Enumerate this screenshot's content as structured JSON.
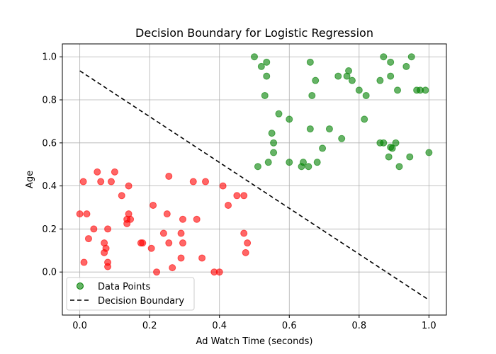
{
  "chart_data": {
    "type": "scatter",
    "title": "Decision Boundary for Logistic Regression",
    "xlabel": "Ad Watch Time (seconds)",
    "ylabel": "Age",
    "xlim": [
      -0.05,
      1.05
    ],
    "ylim": [
      -0.2,
      1.06
    ],
    "xticks": [
      "0.0",
      "0.2",
      "0.4",
      "0.6",
      "0.8",
      "1.0"
    ],
    "yticks": [
      "0.0",
      "0.2",
      "0.4",
      "0.6",
      "0.8",
      "1.0"
    ],
    "grid": true,
    "legend_position": "lower-left",
    "series": [
      {
        "name": "Data Points",
        "kind": "scatter",
        "points": [
          [
            0.0,
            0.27
          ],
          [
            0.01,
            0.42
          ],
          [
            0.012,
            0.045
          ],
          [
            0.02,
            0.27
          ],
          [
            0.025,
            0.155
          ],
          [
            0.04,
            0.2
          ],
          [
            0.05,
            0.465
          ],
          [
            0.06,
            0.42
          ],
          [
            0.07,
            0.135
          ],
          [
            0.07,
            0.09
          ],
          [
            0.075,
            0.11
          ],
          [
            0.08,
            0.2
          ],
          [
            0.08,
            0.045
          ],
          [
            0.08,
            0.025
          ],
          [
            0.09,
            0.42
          ],
          [
            0.1,
            0.465
          ],
          [
            0.12,
            0.355
          ],
          [
            0.135,
            0.245
          ],
          [
            0.135,
            0.225
          ],
          [
            0.14,
            0.4
          ],
          [
            0.14,
            0.27
          ],
          [
            0.145,
            0.245
          ],
          [
            0.175,
            0.135
          ],
          [
            0.18,
            0.135
          ],
          [
            0.205,
            0.11
          ],
          [
            0.21,
            0.31
          ],
          [
            0.22,
            0.0
          ],
          [
            0.24,
            0.18
          ],
          [
            0.25,
            0.27
          ],
          [
            0.255,
            0.135
          ],
          [
            0.255,
            0.445
          ],
          [
            0.265,
            0.02
          ],
          [
            0.29,
            0.18
          ],
          [
            0.29,
            0.065
          ],
          [
            0.295,
            0.135
          ],
          [
            0.295,
            0.245
          ],
          [
            0.325,
            0.42
          ],
          [
            0.335,
            0.245
          ],
          [
            0.35,
            0.065
          ],
          [
            0.36,
            0.42
          ],
          [
            0.385,
            0.0
          ],
          [
            0.4,
            0.0
          ],
          [
            0.41,
            0.4
          ],
          [
            0.425,
            0.31
          ],
          [
            0.45,
            0.355
          ],
          [
            0.47,
            0.355
          ],
          [
            0.47,
            0.18
          ],
          [
            0.475,
            0.09
          ],
          [
            0.48,
            0.135
          ],
          [
            0.5,
            1.0
          ],
          [
            0.51,
            0.49
          ],
          [
            0.52,
            0.955
          ],
          [
            0.53,
            0.82
          ],
          [
            0.535,
            0.91
          ],
          [
            0.535,
            0.975
          ],
          [
            0.54,
            0.51
          ],
          [
            0.55,
            0.645
          ],
          [
            0.555,
            0.6
          ],
          [
            0.555,
            0.555
          ],
          [
            0.57,
            0.735
          ],
          [
            0.6,
            0.71
          ],
          [
            0.6,
            0.51
          ],
          [
            0.635,
            0.49
          ],
          [
            0.64,
            0.51
          ],
          [
            0.655,
            0.49
          ],
          [
            0.66,
            0.975
          ],
          [
            0.66,
            0.665
          ],
          [
            0.665,
            0.82
          ],
          [
            0.675,
            0.89
          ],
          [
            0.68,
            0.51
          ],
          [
            0.695,
            0.575
          ],
          [
            0.715,
            0.665
          ],
          [
            0.74,
            0.91
          ],
          [
            0.75,
            0.62
          ],
          [
            0.765,
            0.91
          ],
          [
            0.77,
            0.935
          ],
          [
            0.78,
            0.89
          ],
          [
            0.8,
            0.845
          ],
          [
            0.815,
            0.71
          ],
          [
            0.82,
            0.82
          ],
          [
            0.86,
            0.89
          ],
          [
            0.86,
            0.6
          ],
          [
            0.87,
            1.0
          ],
          [
            0.87,
            0.6
          ],
          [
            0.885,
            0.535
          ],
          [
            0.89,
            0.975
          ],
          [
            0.89,
            0.91
          ],
          [
            0.89,
            0.58
          ],
          [
            0.895,
            0.575
          ],
          [
            0.905,
            0.6
          ],
          [
            0.91,
            0.845
          ],
          [
            0.915,
            0.49
          ],
          [
            0.935,
            0.955
          ],
          [
            0.945,
            0.535
          ],
          [
            0.95,
            1.0
          ],
          [
            0.965,
            0.845
          ],
          [
            0.975,
            0.845
          ],
          [
            0.99,
            0.845
          ],
          [
            1.0,
            0.555
          ]
        ],
        "class_labels": [
          0,
          0,
          0,
          0,
          0,
          0,
          0,
          0,
          0,
          0,
          0,
          0,
          0,
          0,
          0,
          0,
          0,
          0,
          0,
          0,
          0,
          0,
          0,
          0,
          0,
          0,
          0,
          0,
          0,
          0,
          0,
          0,
          0,
          0,
          0,
          0,
          0,
          0,
          0,
          0,
          0,
          0,
          0,
          0,
          0,
          0,
          0,
          0,
          0,
          1,
          1,
          1,
          1,
          1,
          1,
          1,
          1,
          1,
          1,
          1,
          1,
          1,
          1,
          1,
          1,
          1,
          1,
          1,
          1,
          1,
          1,
          1,
          1,
          1,
          1,
          1,
          1,
          1,
          1,
          1,
          1,
          1,
          1,
          1,
          1,
          1,
          1,
          1,
          1,
          1,
          1,
          1,
          1,
          1,
          1,
          1,
          1,
          1,
          1,
          1
        ],
        "class_colors": [
          "#ff0000",
          "#008000"
        ]
      },
      {
        "name": "Decision Boundary",
        "kind": "line",
        "style": "dashed",
        "color": "#000000",
        "points": [
          [
            0.0,
            0.935
          ],
          [
            1.0,
            -0.13
          ]
        ]
      }
    ]
  }
}
